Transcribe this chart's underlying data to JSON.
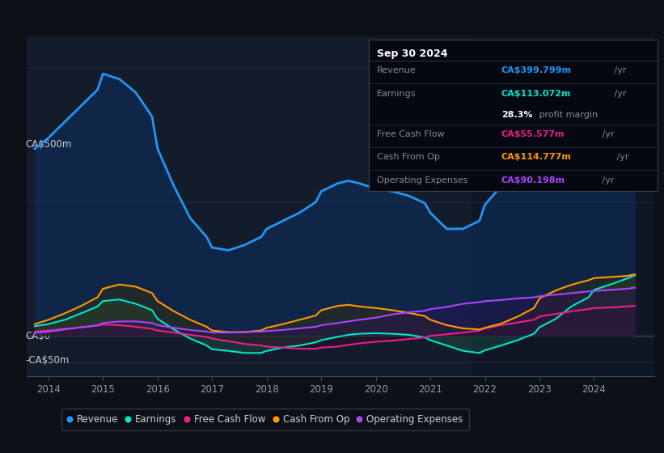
{
  "bg_color": "#0d1117",
  "plot_bg_color": "#131c2b",
  "ylabel_500": "CA$500m",
  "ylabel_0": "CA$0",
  "ylabel_neg50": "-CA$50m",
  "years": [
    2013.75,
    2014.0,
    2014.3,
    2014.6,
    2014.9,
    2015.0,
    2015.3,
    2015.6,
    2015.9,
    2016.0,
    2016.3,
    2016.6,
    2016.9,
    2017.0,
    2017.3,
    2017.6,
    2017.9,
    2018.0,
    2018.3,
    2018.6,
    2018.9,
    2019.0,
    2019.3,
    2019.5,
    2019.7,
    2020.0,
    2020.3,
    2020.6,
    2020.9,
    2021.0,
    2021.3,
    2021.6,
    2021.9,
    2022.0,
    2022.3,
    2022.6,
    2022.9,
    2023.0,
    2023.3,
    2023.6,
    2023.9,
    2024.0,
    2024.3,
    2024.6,
    2024.75
  ],
  "revenue": [
    350,
    370,
    400,
    430,
    460,
    490,
    480,
    455,
    410,
    350,
    280,
    220,
    185,
    165,
    160,
    170,
    185,
    200,
    215,
    230,
    250,
    270,
    285,
    290,
    285,
    275,
    270,
    262,
    248,
    230,
    200,
    200,
    215,
    245,
    280,
    315,
    345,
    360,
    368,
    373,
    378,
    382,
    388,
    394,
    400
  ],
  "earnings": [
    18,
    22,
    30,
    42,
    55,
    65,
    68,
    60,
    48,
    32,
    12,
    -5,
    -18,
    -25,
    -28,
    -32,
    -32,
    -28,
    -22,
    -18,
    -12,
    -8,
    -2,
    2,
    4,
    5,
    4,
    2,
    -3,
    -8,
    -18,
    -28,
    -32,
    -27,
    -18,
    -8,
    4,
    16,
    32,
    56,
    72,
    86,
    96,
    107,
    113
  ],
  "free_cash_flow": [
    8,
    10,
    13,
    16,
    19,
    21,
    20,
    17,
    13,
    10,
    6,
    2,
    -2,
    -5,
    -10,
    -15,
    -18,
    -20,
    -22,
    -24,
    -24,
    -22,
    -20,
    -17,
    -14,
    -11,
    -9,
    -6,
    -3,
    0,
    3,
    6,
    10,
    14,
    20,
    25,
    30,
    36,
    41,
    46,
    50,
    52,
    53,
    55,
    56
  ],
  "cash_from_op": [
    22,
    30,
    42,
    56,
    72,
    88,
    96,
    92,
    80,
    65,
    46,
    30,
    17,
    10,
    7,
    7,
    10,
    15,
    22,
    30,
    38,
    48,
    56,
    58,
    55,
    52,
    48,
    43,
    37,
    30,
    20,
    14,
    12,
    15,
    23,
    36,
    52,
    70,
    85,
    96,
    104,
    108,
    110,
    112,
    115
  ],
  "op_expenses": [
    6,
    8,
    12,
    16,
    20,
    24,
    27,
    27,
    24,
    20,
    15,
    11,
    8,
    6,
    6,
    7,
    8,
    9,
    11,
    14,
    17,
    20,
    24,
    27,
    30,
    34,
    40,
    44,
    47,
    50,
    54,
    60,
    63,
    65,
    67,
    70,
    72,
    74,
    77,
    80,
    83,
    84,
    86,
    88,
    90
  ],
  "revenue_color": "#2196f3",
  "earnings_color": "#00e5cc",
  "fcf_color": "#e91e8c",
  "cashop_color": "#ff9800",
  "opex_color": "#aa44ff",
  "legend_items": [
    {
      "label": "Revenue",
      "color": "#2196f3"
    },
    {
      "label": "Earnings",
      "color": "#00e5cc"
    },
    {
      "label": "Free Cash Flow",
      "color": "#e91e8c"
    },
    {
      "label": "Cash From Op",
      "color": "#ff9800"
    },
    {
      "label": "Operating Expenses",
      "color": "#aa44ff"
    }
  ],
  "info_box": {
    "date": "Sep 30 2024",
    "revenue_label": "Revenue",
    "revenue_val": "CA$399.799m",
    "revenue_suffix": " /yr",
    "revenue_color": "#2196f3",
    "earnings_label": "Earnings",
    "earnings_val": "CA$113.072m",
    "earnings_suffix": " /yr",
    "earnings_color": "#00e5cc",
    "margin_val": "28.3%",
    "margin_text": " profit margin",
    "fcf_label": "Free Cash Flow",
    "fcf_val": "CA$55.577m",
    "fcf_suffix": " /yr",
    "fcf_color": "#e91e8c",
    "cashop_label": "Cash From Op",
    "cashop_val": "CA$114.777m",
    "cashop_suffix": " /yr",
    "cashop_color": "#ff9800",
    "opex_label": "Operating Expenses",
    "opex_val": "CA$90.198m",
    "opex_suffix": " /yr",
    "opex_color": "#aa44ff"
  },
  "xmin": 2013.6,
  "xmax": 2025.1,
  "ymin": -75,
  "ymax": 560,
  "x_ticks": [
    2014,
    2015,
    2016,
    2017,
    2018,
    2019,
    2020,
    2021,
    2022,
    2023,
    2024
  ],
  "x_tick_labels": [
    "2014",
    "2015",
    "2016",
    "2017",
    "2018",
    "2019",
    "2020",
    "2021",
    "2022",
    "2023",
    "2024"
  ],
  "grid_lines": [
    500,
    250,
    0,
    -50
  ],
  "y_label_500_val": 500,
  "y_label_0_val": 0,
  "y_label_neg50_val": -50
}
